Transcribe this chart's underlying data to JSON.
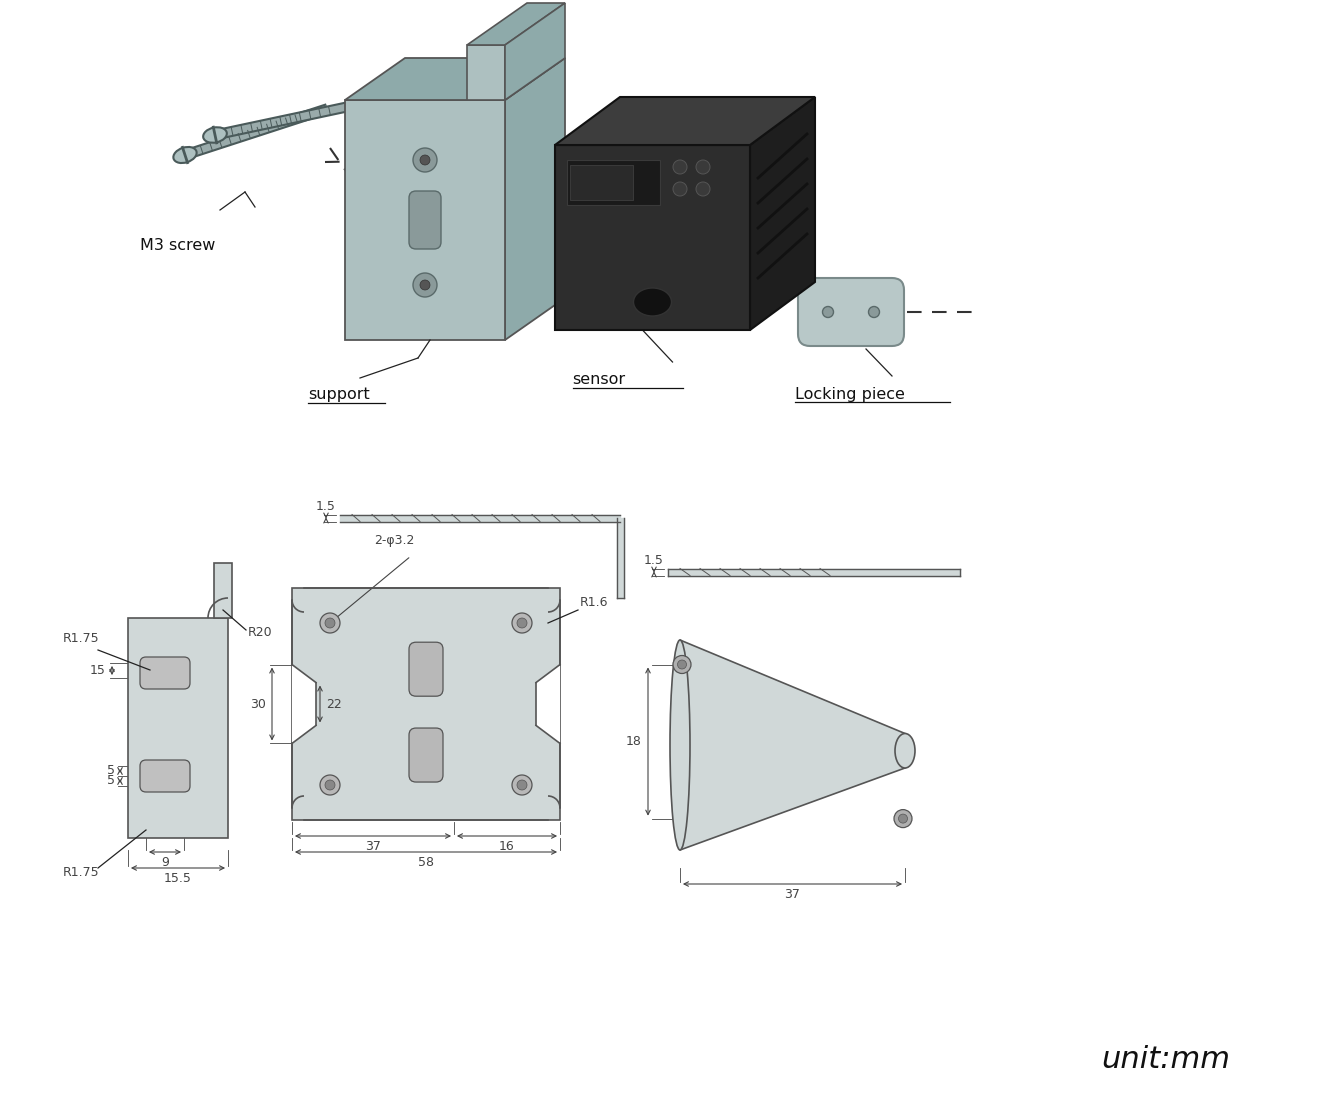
{
  "bg": "#ffffff",
  "lc": "#555555",
  "dc": "#444444",
  "df": "#d0d8d8",
  "sensor_f": "#2d2d2d",
  "sensor_t": "#3d3d3d",
  "sensor_r": "#1e1e1e",
  "sup_f": "#adc0c0",
  "sup_t": "#8eaaaa",
  "sup_r": "#8eaaaa",
  "lk_f": "#b8c8c8",
  "scr_f": "#9aabab",
  "scr_d": "#4a5a5a",
  "labels": {
    "M3_screw": "M3 screw",
    "support": "support",
    "sensor": "sensor",
    "locking_piece": "Locking piece",
    "unit": "unit:mm"
  },
  "dims": {
    "R1_75a": "R1.75",
    "R1_75b": "R1.75",
    "R20": "R20",
    "R1_6": "R1.6",
    "d15": "15",
    "d5a": "5",
    "d5b": "5",
    "d9": "9",
    "d15_5": "15.5",
    "d30": "30",
    "d22": "22",
    "d37a": "37",
    "d16": "16",
    "d58": "58",
    "d1_5a": "1.5",
    "d1_5b": "1.5",
    "d18": "18",
    "d37b": "37",
    "holes": "2-φ3.2"
  }
}
